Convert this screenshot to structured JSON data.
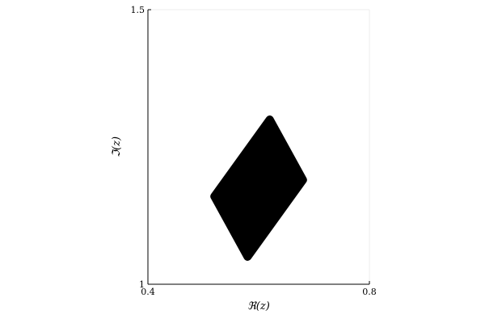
{
  "chart_data": {
    "type": "area",
    "title": "",
    "xlabel": "ℜ(z)",
    "ylabel": "ℑ(z)",
    "xlim": [
      0.4,
      0.8
    ],
    "ylim": [
      1.0,
      1.5
    ],
    "x_tick_labels": [
      "0.4",
      "0.8"
    ],
    "y_tick_labels": [
      "1",
      "1.5"
    ],
    "grid": false,
    "series": [
      {
        "fill_color": "#000000",
        "polygon": {
          "x": [
            0.62,
            0.68,
            0.58,
            0.52
          ],
          "y": [
            1.3,
            1.19,
            1.05,
            1.16
          ]
        }
      }
    ]
  }
}
